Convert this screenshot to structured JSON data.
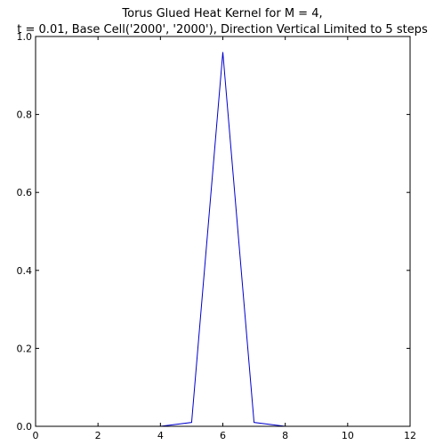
{
  "chart_data": {
    "type": "line",
    "title": "Torus Glued Heat Kernel for M = 4,",
    "subtitle": "t = 0.01, Base Cell('2000', '2000'), Direction Vertical Limited to 5 steps",
    "xlabel": "",
    "ylabel": "",
    "xlim": [
      0,
      12
    ],
    "ylim": [
      0,
      1.0
    ],
    "xticks": [
      0,
      2,
      4,
      6,
      8,
      10,
      12
    ],
    "xtick_labels": [
      "0",
      "2",
      "4",
      "6",
      "8",
      "10",
      "12"
    ],
    "yticks": [
      0.0,
      0.2,
      0.4,
      0.6,
      0.8,
      1.0
    ],
    "ytick_labels": [
      "0.0",
      "0.2",
      "0.4",
      "0.6",
      "0.8",
      "1.0"
    ],
    "grid": false,
    "series": [
      {
        "color": "#0000cc",
        "x": [
          0,
          1,
          2,
          3,
          4,
          5,
          6,
          7,
          8
        ],
        "y": [
          0,
          0,
          0,
          0,
          0,
          0.01,
          0.96,
          0.01,
          0
        ]
      }
    ]
  }
}
